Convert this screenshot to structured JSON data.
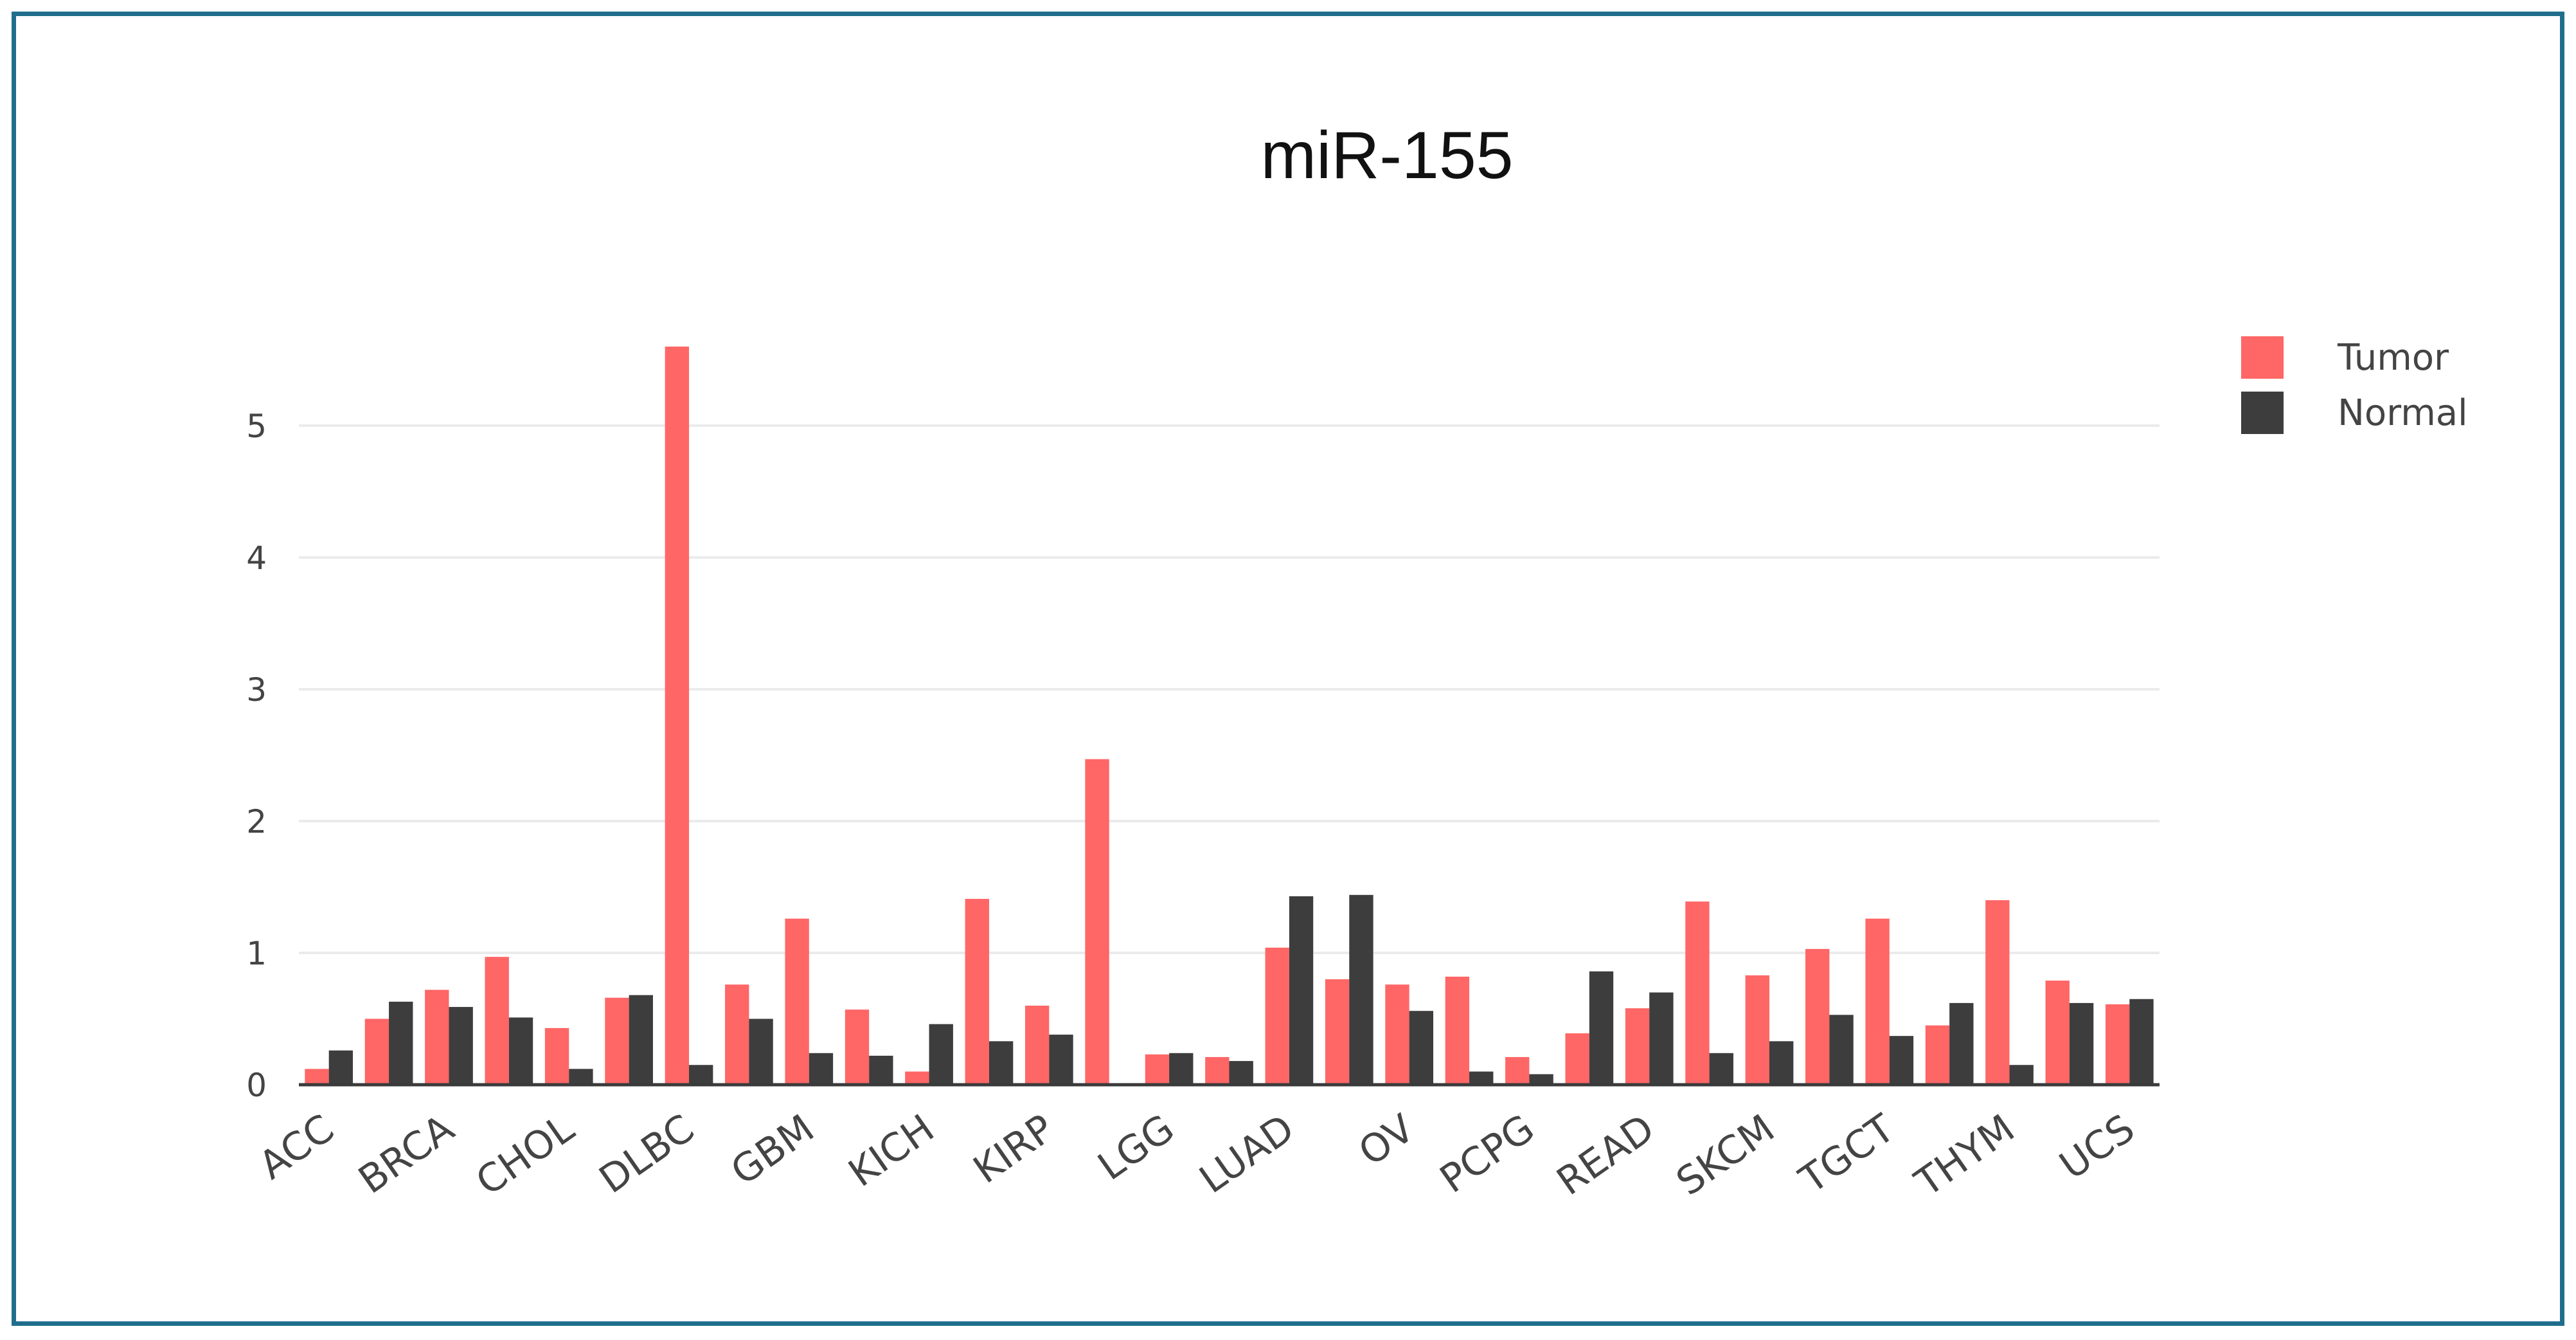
{
  "chart_data": {
    "type": "bar",
    "title": "miR-155",
    "xlabel": "",
    "ylabel": "",
    "ylim": [
      0,
      5.8
    ],
    "yticks": [
      0,
      1,
      2,
      3,
      4,
      5
    ],
    "grid": true,
    "legend_position": "top-right",
    "categories": [
      "ACC",
      "",
      "BRCA",
      "",
      "CHOL",
      "",
      "DLBC",
      "",
      "GBM",
      "",
      "KICH",
      "",
      "KIRP",
      "",
      "LGG",
      "",
      "LUAD",
      "",
      "OV",
      "",
      "PCPG",
      "",
      "READ",
      "",
      "SKCM",
      "",
      "TGCT",
      "",
      "THYM",
      "",
      "UCS"
    ],
    "series": [
      {
        "name": "Tumor",
        "color": "#ff6666",
        "values": [
          0.12,
          0.5,
          0.72,
          0.97,
          0.43,
          0.66,
          5.6,
          0.76,
          1.26,
          0.57,
          0.1,
          1.41,
          0.6,
          2.47,
          0.23,
          0.21,
          1.04,
          0.8,
          0.76,
          0.82,
          0.21,
          0.39,
          0.58,
          1.39,
          0.83,
          1.03,
          1.26,
          0.45,
          1.4,
          0.79,
          0.61
        ]
      },
      {
        "name": "Normal",
        "color": "#3d3d3d",
        "values": [
          0.26,
          0.63,
          0.59,
          0.51,
          0.12,
          0.68,
          0.15,
          0.5,
          0.24,
          0.22,
          0.46,
          0.33,
          0.38,
          null,
          0.24,
          0.18,
          1.43,
          1.44,
          0.56,
          0.1,
          0.08,
          0.86,
          0.7,
          0.24,
          0.33,
          0.53,
          0.37,
          0.62,
          0.15,
          0.62,
          0.65
        ]
      }
    ]
  }
}
